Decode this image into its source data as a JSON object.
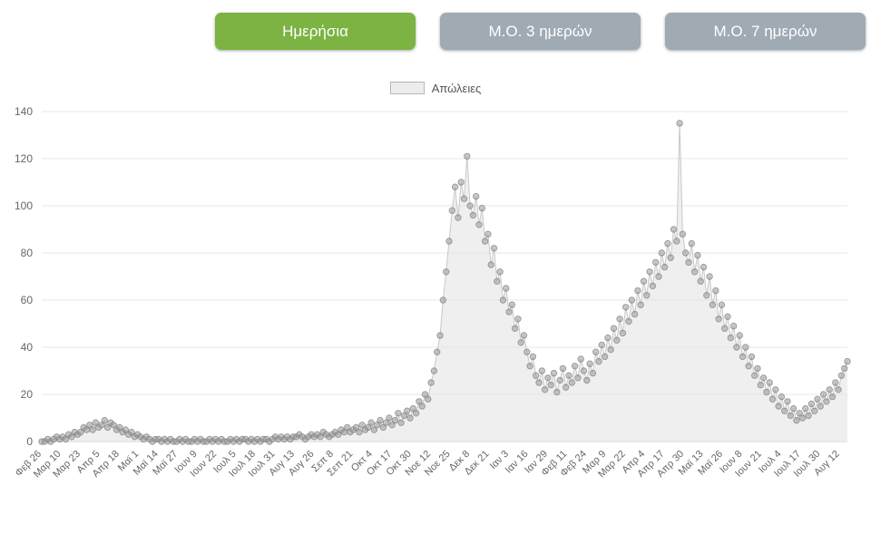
{
  "toolbar": {
    "buttons": [
      {
        "label": "Ημερήσια",
        "active": true
      },
      {
        "label": "Μ.Ο. 3 ημερών",
        "active": false
      },
      {
        "label": "Μ.Ο. 7 ημερών",
        "active": false
      }
    ]
  },
  "legend": {
    "label": "Απώλειες"
  },
  "colors": {
    "active_button": "#7cb342",
    "inactive_button": "#9faab3",
    "button_text": "#ffffff",
    "area_fill": "#e4e4e4",
    "line": "#c9c9c9",
    "point_fill": "#9d9d9d",
    "point_stroke": "#7f7f7f",
    "grid": "#e7e7e7",
    "axis_line": "#d4d4d4",
    "axis_text": "#666666",
    "legend_swatch_fill": "#ececec",
    "legend_swatch_border": "#b7b7b7"
  },
  "chart_data": {
    "type": "area",
    "title": "",
    "legend": [
      "Απώλειες"
    ],
    "legend_position": "top",
    "grid": true,
    "ylim": [
      0,
      140
    ],
    "y_ticks": [
      0,
      20,
      40,
      60,
      80,
      100,
      120,
      140
    ],
    "tick_interval_days": 13,
    "point_interval_days": 2,
    "x_tick_labels": [
      "Φεβ 26",
      "Μαρ 10",
      "Μαρ 23",
      "Απρ 5",
      "Απρ 18",
      "Μαϊ 1",
      "Μαϊ 14",
      "Μαϊ 27",
      "Ιουν 9",
      "Ιουν 22",
      "Ιουλ 5",
      "Ιουλ 18",
      "Ιουλ 31",
      "Αυγ 13",
      "Αυγ 26",
      "Σεπ 8",
      "Σεπ 21",
      "Οκτ 4",
      "Οκτ 17",
      "Οκτ 30",
      "Νοε 12",
      "Νοε 25",
      "Δεκ 8",
      "Δεκ 21",
      "Ιαν 3",
      "Ιαν 16",
      "Ιαν 29",
      "Φεβ 11",
      "Φεβ 24",
      "Μαρ 9",
      "Μαρ 22",
      "Απρ 4",
      "Απρ 17",
      "Απρ 30",
      "Μαϊ 13",
      "Μαϊ 26",
      "Ιουν 8",
      "Ιουν 21",
      "Ιουλ 4",
      "Ιουλ 17",
      "Ιουλ 30",
      "Αυγ 12"
    ],
    "values": [
      0,
      0,
      1,
      0,
      1,
      2,
      1,
      2,
      1,
      3,
      2,
      4,
      3,
      4,
      6,
      5,
      7,
      5,
      8,
      6,
      7,
      9,
      6,
      8,
      7,
      5,
      6,
      4,
      5,
      3,
      4,
      2,
      3,
      2,
      1,
      2,
      1,
      0,
      1,
      1,
      0,
      1,
      0,
      1,
      0,
      0,
      1,
      0,
      1,
      0,
      0,
      1,
      0,
      1,
      0,
      0,
      1,
      0,
      1,
      0,
      1,
      0,
      0,
      1,
      0,
      1,
      0,
      1,
      1,
      0,
      1,
      0,
      1,
      0,
      1,
      1,
      0,
      1,
      2,
      1,
      2,
      1,
      2,
      1,
      2,
      2,
      3,
      2,
      1,
      2,
      3,
      2,
      3,
      2,
      4,
      3,
      2,
      3,
      4,
      3,
      5,
      4,
      6,
      4,
      5,
      6,
      4,
      7,
      5,
      6,
      8,
      5,
      7,
      9,
      6,
      8,
      10,
      7,
      9,
      12,
      8,
      11,
      13,
      10,
      14,
      12,
      17,
      15,
      20,
      18,
      25,
      30,
      38,
      45,
      60,
      72,
      85,
      98,
      108,
      95,
      110,
      103,
      121,
      100,
      96,
      104,
      92,
      99,
      85,
      88,
      75,
      82,
      68,
      72,
      60,
      65,
      55,
      58,
      48,
      52,
      42,
      45,
      38,
      32,
      36,
      28,
      25,
      30,
      22,
      27,
      24,
      29,
      21,
      26,
      31,
      23,
      28,
      25,
      32,
      27,
      35,
      30,
      26,
      33,
      29,
      38,
      34,
      41,
      36,
      44,
      39,
      48,
      43,
      52,
      46,
      57,
      51,
      60,
      54,
      64,
      58,
      68,
      62,
      72,
      66,
      76,
      70,
      80,
      74,
      84,
      78,
      90,
      85,
      135,
      88,
      80,
      76,
      84,
      72,
      79,
      68,
      74,
      62,
      70,
      58,
      64,
      52,
      58,
      48,
      53,
      44,
      49,
      40,
      45,
      36,
      40,
      32,
      36,
      28,
      31,
      24,
      27,
      21,
      25,
      18,
      22,
      15,
      19,
      13,
      17,
      11,
      14,
      9,
      12,
      10,
      14,
      11,
      16,
      13,
      18,
      15,
      20,
      17,
      22,
      19,
      25,
      22,
      28,
      31,
      34
    ]
  }
}
